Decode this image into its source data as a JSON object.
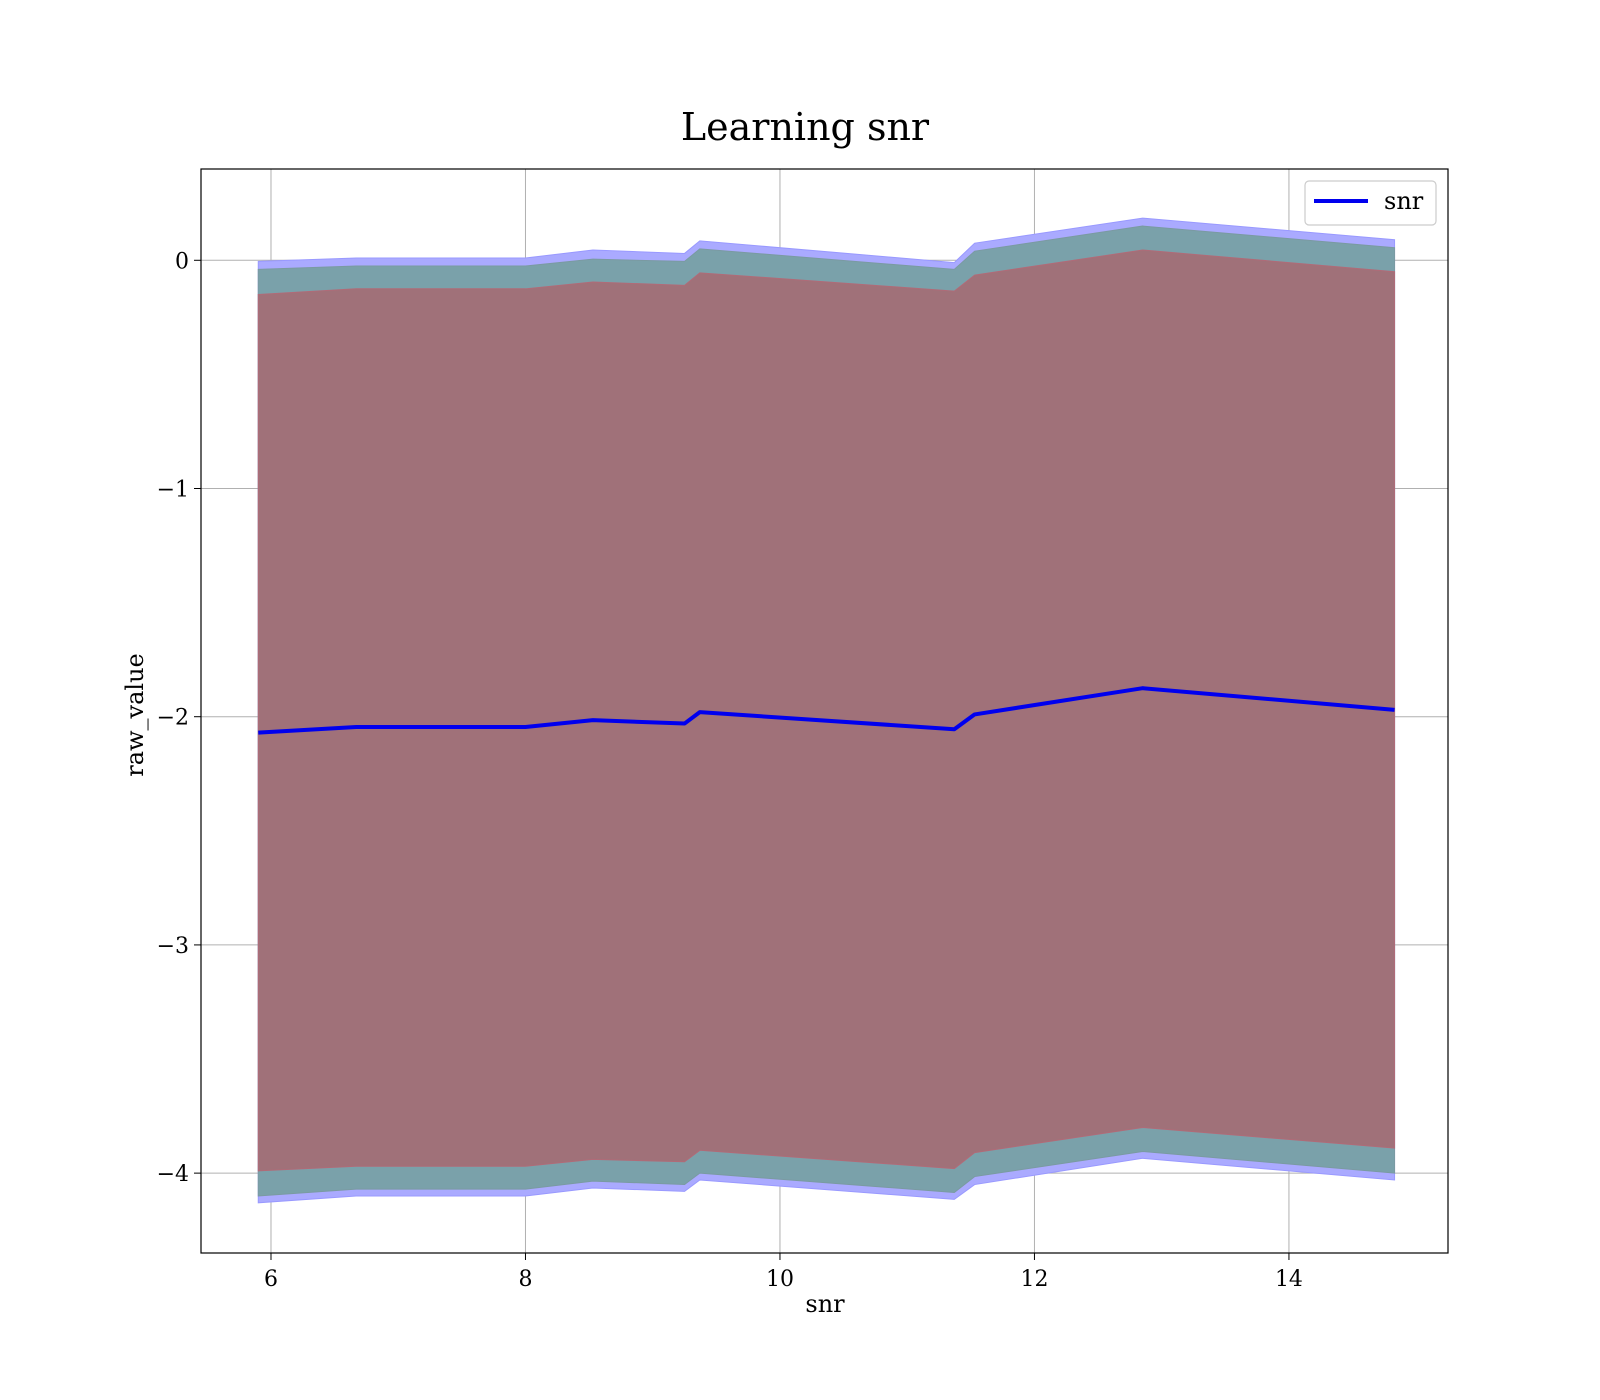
{
  "chart_data": {
    "type": "line",
    "title": "Learning snr",
    "xlabel": "snr",
    "ylabel": "raw_value",
    "xlim": [
      5.45,
      15.25
    ],
    "ylim": [
      -4.35,
      0.4
    ],
    "grid": true,
    "legend_position": "top-right",
    "x_ticks": [
      6,
      8,
      10,
      12,
      14
    ],
    "y_ticks": [
      0,
      -1,
      -2,
      -3,
      -4
    ],
    "x_tick_labels": [
      "6",
      "8",
      "10",
      "12",
      "14"
    ],
    "y_tick_labels": [
      "0",
      "−1",
      "−2",
      "−3",
      "−4"
    ],
    "x": [
      5.9,
      6.67,
      8.0,
      8.53,
      9.25,
      9.37,
      11.37,
      11.53,
      12.85,
      14.83
    ],
    "series": [
      {
        "name": "snr",
        "color": "#0000ee",
        "values": [
          -2.07,
          -2.045,
          -2.045,
          -2.015,
          -2.03,
          -1.98,
          -2.055,
          -1.99,
          -1.875,
          -1.97
        ]
      }
    ],
    "bands": [
      {
        "role": "outer",
        "fill": "#aaaaff",
        "stroke": "#9999ff",
        "upper": [
          -0.005,
          0.01,
          0.01,
          0.045,
          0.03,
          0.085,
          -0.01,
          0.075,
          0.185,
          0.09
        ],
        "lower": [
          -4.13,
          -4.1,
          -4.1,
          -4.065,
          -4.08,
          -4.03,
          -4.115,
          -4.05,
          -3.935,
          -4.03
        ]
      },
      {
        "role": "middle",
        "fill": "#7aa1aa",
        "stroke": "#7a9aa2",
        "upper": [
          -0.04,
          -0.025,
          -0.025,
          0.005,
          -0.005,
          0.05,
          -0.04,
          0.04,
          0.15,
          0.055
        ],
        "lower": [
          -4.1,
          -4.07,
          -4.07,
          -4.035,
          -4.05,
          -4.0,
          -4.085,
          -4.015,
          -3.905,
          -4.0
        ]
      },
      {
        "role": "inner",
        "fill": "#a07179",
        "stroke": "#b06b78",
        "upper": [
          -0.15,
          -0.125,
          -0.125,
          -0.095,
          -0.11,
          -0.055,
          -0.135,
          -0.065,
          0.045,
          -0.05
        ],
        "lower": [
          -3.99,
          -3.97,
          -3.97,
          -3.94,
          -3.95,
          -3.9,
          -3.98,
          -3.91,
          -3.8,
          -3.89
        ]
      }
    ]
  }
}
